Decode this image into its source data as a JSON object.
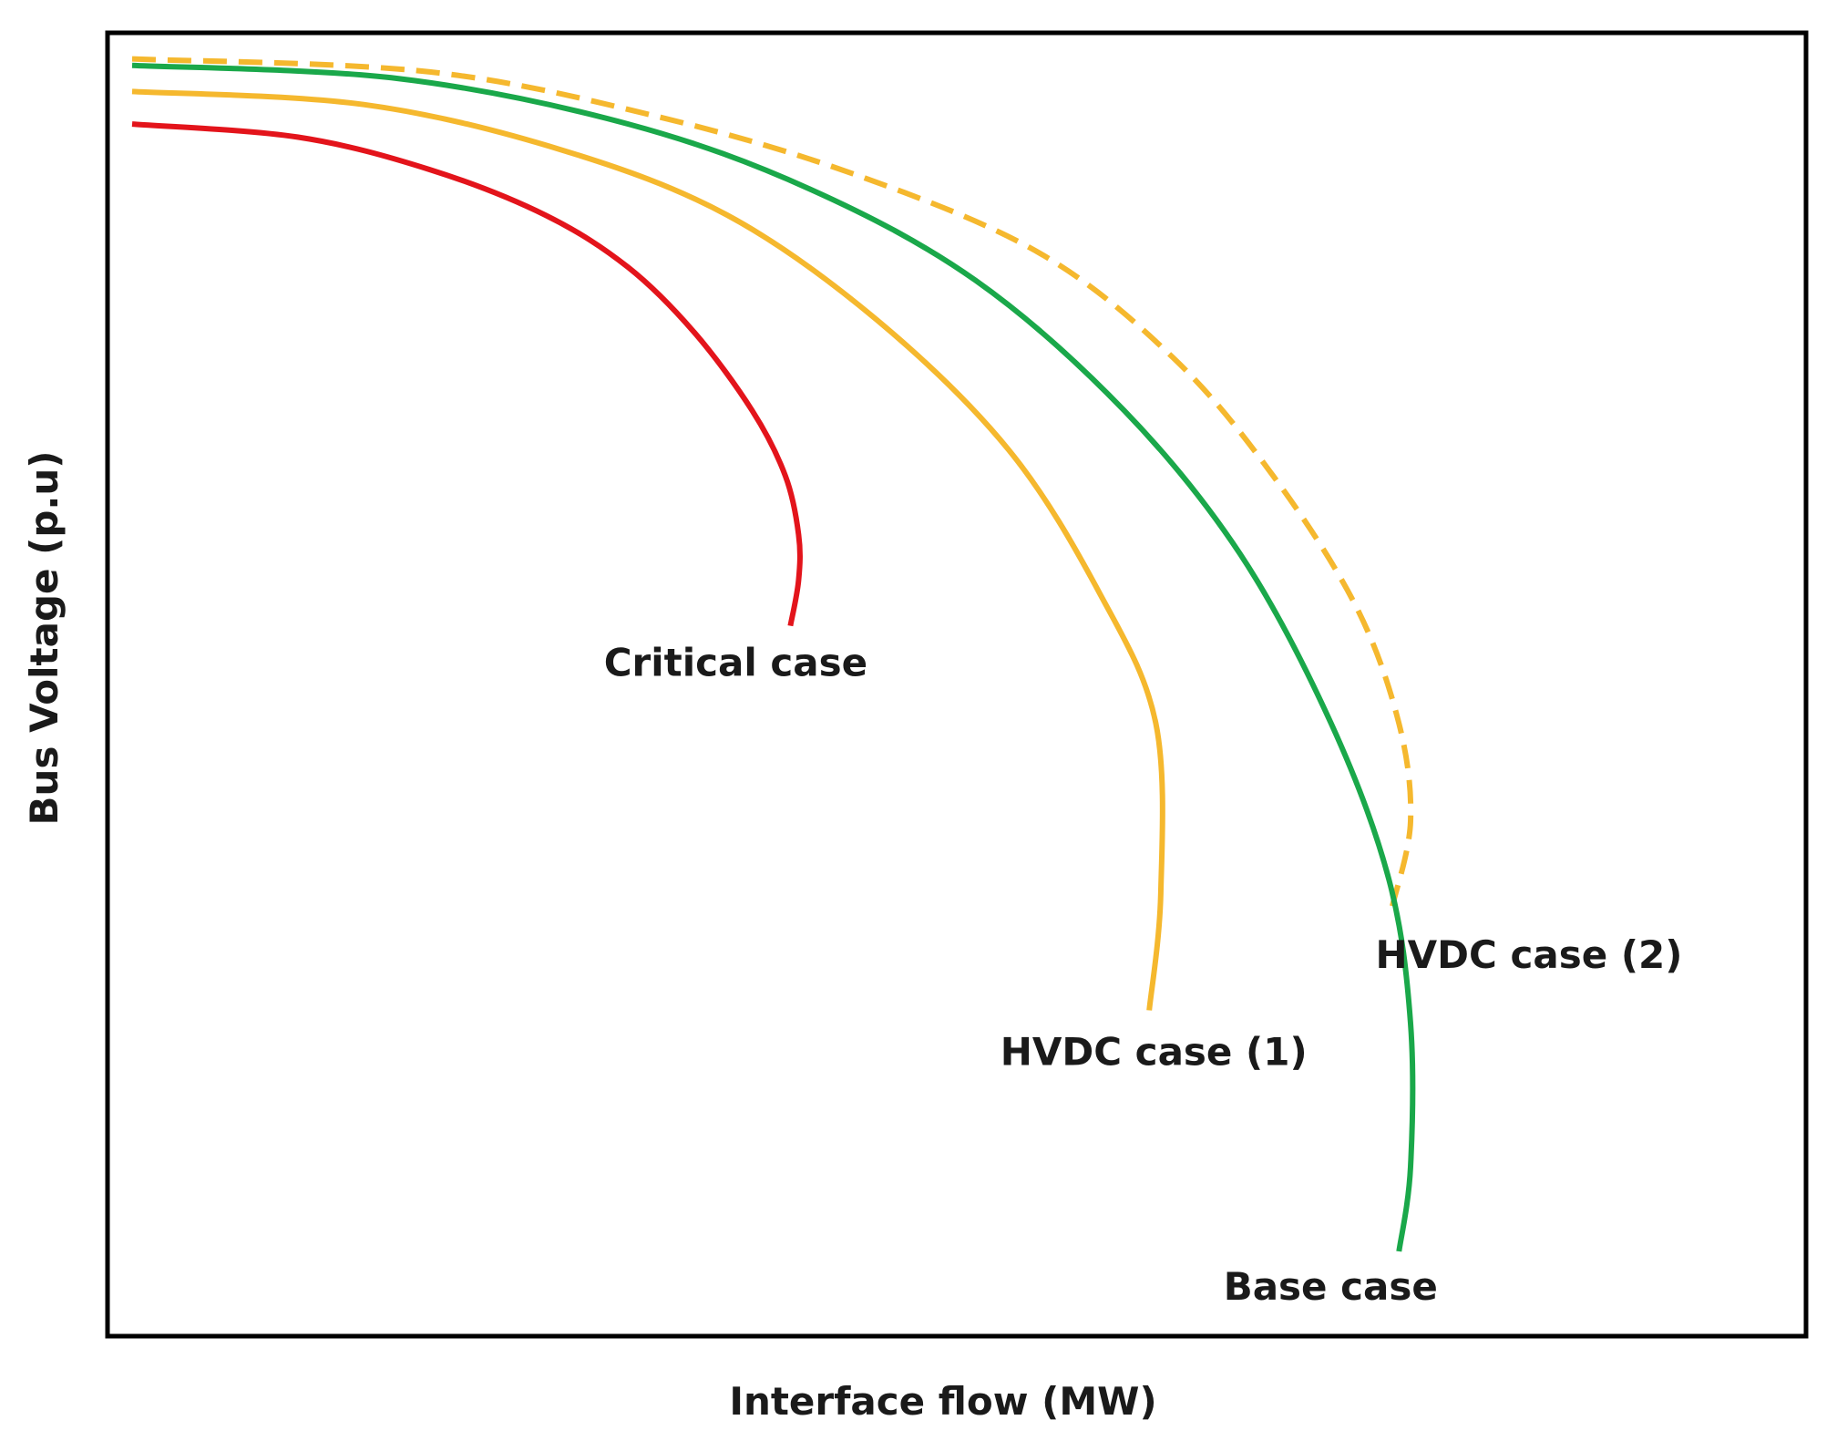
{
  "chart_data": {
    "type": "line",
    "title": "",
    "xlabel": "Interface flow (MW)",
    "ylabel": "Bus Voltage (p.u)",
    "xlim": [
      0,
      100
    ],
    "ylim": [
      0,
      100
    ],
    "grid": false,
    "legend": "none (inline curve labels)",
    "series": [
      {
        "name": "Critical case",
        "color": "#e3141b",
        "dash": "solid",
        "x": [
          0,
          10,
          18,
          25,
          30,
          34,
          37.5,
          39.5,
          40.3,
          40.3,
          39.8
        ],
        "y": [
          93.0,
          92.0,
          89.5,
          86.0,
          82.0,
          77.0,
          71.0,
          66.0,
          61.5,
          58.0,
          54.5
        ]
      },
      {
        "name": "HVDC case (1)",
        "color": "#f5b82e",
        "dash": "solid",
        "x": [
          0,
          14,
          26,
          36,
          45,
          53,
          58.5,
          61.9,
          62.2,
          61.5
        ],
        "y": [
          95.5,
          94.5,
          91.0,
          86.0,
          78.0,
          68.0,
          57.0,
          47.0,
          34.0,
          25.0
        ]
      },
      {
        "name": "Base case",
        "color": "#1aa84a",
        "dash": "solid",
        "x": [
          0,
          16,
          30,
          41,
          51,
          60,
          67,
          72.5,
          76.0,
          77.3,
          77.3,
          76.6
        ],
        "y": [
          97.5,
          96.5,
          93.0,
          88.0,
          81.0,
          71.0,
          60.0,
          47.0,
          35.0,
          24.0,
          13.0,
          6.5
        ]
      },
      {
        "name": "HVDC case (2)",
        "color": "#f5b82e",
        "dash": "dashed",
        "x": [
          0,
          18,
          32,
          44,
          55,
          63,
          69,
          74.0,
          76.6,
          77.3,
          76.2
        ],
        "y": [
          98.0,
          97.0,
          93.5,
          89.0,
          83.0,
          75.0,
          66.0,
          56.0,
          47.0,
          39.5,
          33.0
        ]
      }
    ],
    "annotations": [
      {
        "text": "Critical case",
        "series": 0
      },
      {
        "text": "HVDC case (1)",
        "series": 1
      },
      {
        "text": "HVDC case (2)",
        "series": 3
      },
      {
        "text": "Base case",
        "series": 2
      }
    ]
  }
}
